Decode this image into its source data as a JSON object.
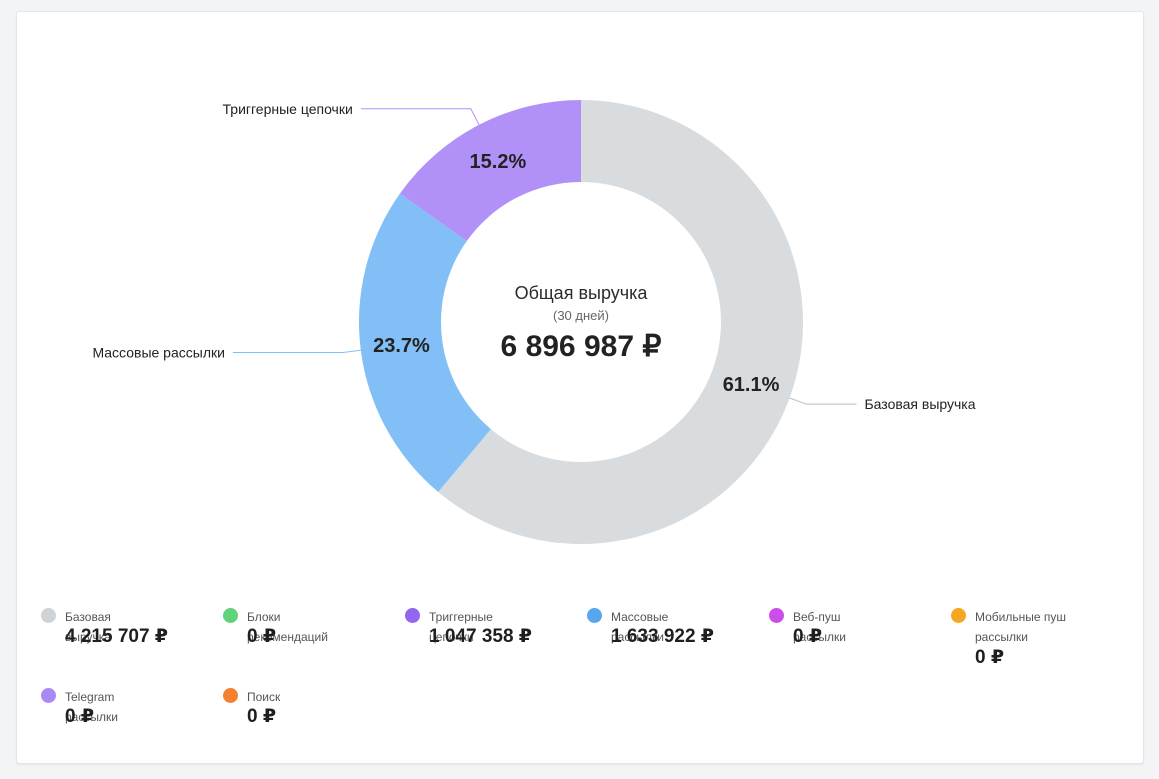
{
  "center": {
    "title": "Общая выручка",
    "subtitle": "(30 дней)",
    "total": "6 896 987 ₽"
  },
  "chart_data": {
    "type": "pie",
    "title": "Общая выручка",
    "subtitle": "(30 дней)",
    "total": "6 896 987 ₽",
    "slices": [
      {
        "name": "Базовая выручка",
        "value": 4215707,
        "percent_label": "61.1%",
        "color": "#d8dcdf"
      },
      {
        "name": "Массовые рассылки",
        "value": 1633922,
        "percent_label": "23.7%",
        "color": "#82bff6"
      },
      {
        "name": "Триггерные цепочки",
        "value": 1047358,
        "percent_label": "15.2%",
        "color": "#b191f8"
      }
    ]
  },
  "legend": [
    {
      "label": "Базовая выручка",
      "value": "4 215 707 ₽",
      "color": "#cfd3d6"
    },
    {
      "label": "Блоки рекомендаций",
      "value": "0 ₽",
      "color": "#5fd27a"
    },
    {
      "label": "Триггерные цепочки",
      "value": "1 047 358 ₽",
      "color": "#9266f0"
    },
    {
      "label": "Массовые рассылки",
      "value": "1 633 922 ₽",
      "color": "#58a6ee"
    },
    {
      "label": "Веб-пуш рассылки",
      "value": "0 ₽",
      "color": "#cc4ee8"
    },
    {
      "label": "Мобильные пуш рассылки",
      "value": "0 ₽",
      "color": "#f5a623"
    },
    {
      "label": "Telegram рассылки",
      "value": "0 ₽",
      "color": "#a98af5"
    },
    {
      "label": "Поиск",
      "value": "0 ₽",
      "color": "#f5802f"
    }
  ]
}
